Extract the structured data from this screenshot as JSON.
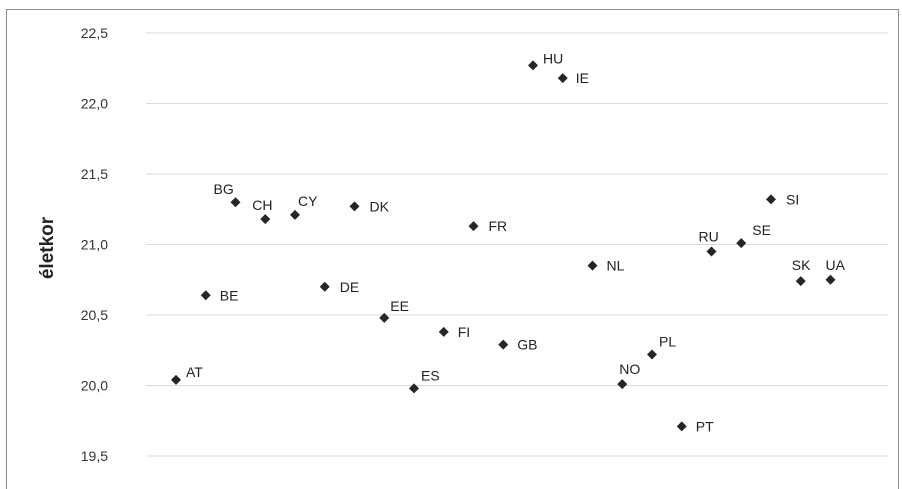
{
  "chart_data": {
    "type": "scatter",
    "title": "",
    "xlabel": "",
    "ylabel": "életkor",
    "ylim": [
      19.5,
      22.5
    ],
    "yticks": [
      "19,5",
      "20,0",
      "20,5",
      "21,0",
      "21,5",
      "22,0",
      "22,5"
    ],
    "grid": true,
    "legend": "none",
    "marker": "diamond",
    "marker_color": "#262626",
    "points": [
      {
        "label": "AT",
        "x": 1,
        "y": 20.04
      },
      {
        "label": "BE",
        "x": 2,
        "y": 20.64
      },
      {
        "label": "BG",
        "x": 3,
        "y": 21.3
      },
      {
        "label": "CH",
        "x": 4,
        "y": 21.18
      },
      {
        "label": "CY",
        "x": 5,
        "y": 21.21
      },
      {
        "label": "DE",
        "x": 6,
        "y": 20.7
      },
      {
        "label": "DK",
        "x": 7,
        "y": 21.27
      },
      {
        "label": "EE",
        "x": 8,
        "y": 20.48
      },
      {
        "label": "ES",
        "x": 9,
        "y": 19.98
      },
      {
        "label": "FI",
        "x": 10,
        "y": 20.38
      },
      {
        "label": "FR",
        "x": 11,
        "y": 21.13
      },
      {
        "label": "GB",
        "x": 12,
        "y": 20.29
      },
      {
        "label": "HU",
        "x": 13,
        "y": 22.27
      },
      {
        "label": "IE",
        "x": 14,
        "y": 22.18
      },
      {
        "label": "NL",
        "x": 15,
        "y": 20.85
      },
      {
        "label": "NO",
        "x": 16,
        "y": 20.01
      },
      {
        "label": "PL",
        "x": 17,
        "y": 20.22
      },
      {
        "label": "PT",
        "x": 18,
        "y": 19.71
      },
      {
        "label": "RU",
        "x": 19,
        "y": 20.95
      },
      {
        "label": "SE",
        "x": 20,
        "y": 21.01
      },
      {
        "label": "SI",
        "x": 21,
        "y": 21.32
      },
      {
        "label": "SK",
        "x": 22,
        "y": 20.74
      },
      {
        "label": "UA",
        "x": 23,
        "y": 20.75
      }
    ]
  }
}
